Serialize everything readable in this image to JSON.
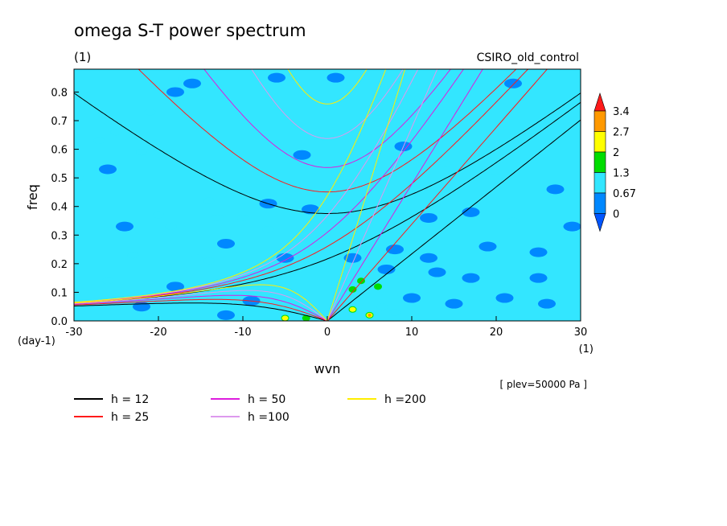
{
  "chart_data": {
    "type": "heatmap",
    "title": "omega S-T power spectrum",
    "subtitle_left": "(1)",
    "subtitle_right": "CSIRO_old_control",
    "xlabel": "wvn",
    "ylabel": "freq",
    "x_unit": "(1)",
    "y_unit": "(day-1)",
    "footnote": "[ plev=50000 Pa ]",
    "xlim": [
      -30,
      30
    ],
    "ylim": [
      0,
      0.88
    ],
    "x_ticks": [
      "-30",
      "-20",
      "-10",
      "0",
      "10",
      "20",
      "30"
    ],
    "y_ticks": [
      "0.0",
      "0.1",
      "0.2",
      "0.3",
      "0.4",
      "0.5",
      "0.6",
      "0.7",
      "0.8"
    ],
    "background_level_color": "#33e6ff",
    "colorbar": {
      "levels": [
        "3.4",
        "2.7",
        "2",
        "1.3",
        "0.67",
        "0"
      ],
      "colors": [
        "#ff1a1a",
        "#ff9900",
        "#ffff00",
        "#00dd00",
        "#33e6ff",
        "#0088ff",
        "#0055ff"
      ]
    },
    "patches": [
      {
        "x": -29.5,
        "y": 0.5,
        "level": 4
      },
      {
        "x": -27,
        "y": 0.63,
        "level": 4
      },
      {
        "x": -25,
        "y": 0.66,
        "level": 4
      },
      {
        "x": -22,
        "y": 0.59,
        "level": 4
      },
      {
        "x": -20,
        "y": 0.37,
        "level": 4
      },
      {
        "x": -18.5,
        "y": 0.33,
        "level": 4
      },
      {
        "x": -14,
        "y": 0.42,
        "level": 4
      },
      {
        "x": -13,
        "y": 0.36,
        "level": 4
      },
      {
        "x": -10,
        "y": 0.36,
        "level": 4
      },
      {
        "x": -7,
        "y": 0.32,
        "level": 4
      },
      {
        "x": -15.5,
        "y": 0.22,
        "level": 4
      },
      {
        "x": -14,
        "y": 0.21,
        "level": 4
      },
      {
        "x": -6,
        "y": 0.16,
        "level": 4
      },
      {
        "x": -3,
        "y": 0.28,
        "level": 4
      },
      {
        "x": -26,
        "y": 0.14,
        "level": 4
      },
      {
        "x": -23,
        "y": 0.23,
        "level": 4
      },
      {
        "x": 14,
        "y": 0.55,
        "level": 4
      },
      {
        "x": 20,
        "y": 0.52,
        "level": 4
      },
      {
        "x": 22,
        "y": 0.35,
        "level": 4
      },
      {
        "x": -21,
        "y": 0.73,
        "level": 4
      },
      {
        "x": -17,
        "y": 0.85,
        "level": 4
      },
      {
        "x": 6,
        "y": 0.73,
        "level": 4
      },
      {
        "x": 1,
        "y": 0.35,
        "level": 4
      },
      {
        "x": 2.5,
        "y": 0.08,
        "level": 4
      },
      {
        "x": 4,
        "y": 0.11,
        "level": 4
      },
      {
        "x": 6,
        "y": 0.12,
        "level": 4
      },
      {
        "x": 1.5,
        "y": 0.04,
        "level": 4
      },
      {
        "x": 3.5,
        "y": 0.05,
        "level": 4
      },
      {
        "x": 6.5,
        "y": 0.05,
        "level": 4
      },
      {
        "x": 8,
        "y": 0.03,
        "level": 4
      },
      {
        "x": -5,
        "y": 0.02,
        "level": 4
      },
      {
        "x": -2.5,
        "y": 0.02,
        "level": 4
      },
      {
        "x": 3,
        "y": 0.11,
        "level": 3
      },
      {
        "x": 4,
        "y": 0.14,
        "level": 3
      },
      {
        "x": 6,
        "y": 0.12,
        "level": 3
      },
      {
        "x": 3,
        "y": 0.04,
        "level": 3
      },
      {
        "x": 5,
        "y": 0.02,
        "level": 3
      },
      {
        "x": -5,
        "y": 0.01,
        "level": 3
      },
      {
        "x": -2.5,
        "y": 0.01,
        "level": 3
      },
      {
        "x": 5,
        "y": 0.02,
        "level": 2
      },
      {
        "x": 3,
        "y": 0.04,
        "level": 2
      },
      {
        "x": 5,
        "y": 0.02,
        "level": 1
      },
      {
        "x": -5,
        "y": 0.01,
        "level": 2
      },
      {
        "x": -18,
        "y": 0.8,
        "level": 5
      },
      {
        "x": -16,
        "y": 0.83,
        "level": 5
      },
      {
        "x": -6,
        "y": 0.85,
        "level": 5
      },
      {
        "x": 1,
        "y": 0.85,
        "level": 5
      },
      {
        "x": 22,
        "y": 0.83,
        "level": 5
      },
      {
        "x": 27,
        "y": 0.46,
        "level": 5
      },
      {
        "x": -24,
        "y": 0.33,
        "level": 5
      },
      {
        "x": -7,
        "y": 0.41,
        "level": 5
      },
      {
        "x": -2,
        "y": 0.39,
        "level": 5
      },
      {
        "x": 12,
        "y": 0.36,
        "level": 5
      },
      {
        "x": 17,
        "y": 0.38,
        "level": 5
      },
      {
        "x": 25,
        "y": 0.24,
        "level": 5
      },
      {
        "x": -12,
        "y": 0.27,
        "level": 5
      },
      {
        "x": 17,
        "y": 0.15,
        "level": 5
      },
      {
        "x": 13,
        "y": 0.17,
        "level": 5
      },
      {
        "x": 10,
        "y": 0.08,
        "level": 5
      },
      {
        "x": 15,
        "y": 0.06,
        "level": 5
      },
      {
        "x": 21,
        "y": 0.08,
        "level": 5
      },
      {
        "x": 26,
        "y": 0.06,
        "level": 5
      },
      {
        "x": 8,
        "y": 0.25,
        "level": 5
      },
      {
        "x": 12,
        "y": 0.22,
        "level": 5
      },
      {
        "x": -22,
        "y": 0.05,
        "level": 5
      },
      {
        "x": -12,
        "y": 0.02,
        "level": 5
      },
      {
        "x": -18,
        "y": 0.12,
        "level": 5
      },
      {
        "x": -9,
        "y": 0.07,
        "level": 5
      },
      {
        "x": 3,
        "y": 0.22,
        "level": 5
      },
      {
        "x": -26,
        "y": 0.53,
        "level": 5
      },
      {
        "x": 9,
        "y": 0.61,
        "level": 5
      },
      {
        "x": -3,
        "y": 0.58,
        "level": 5
      },
      {
        "x": 29,
        "y": 0.33,
        "level": 5
      },
      {
        "x": 25,
        "y": 0.15,
        "level": 5
      },
      {
        "x": 19,
        "y": 0.26,
        "level": 5
      },
      {
        "x": 7,
        "y": 0.18,
        "level": 5
      },
      {
        "x": -5,
        "y": 0.22,
        "level": 5
      }
    ],
    "series": [
      {
        "name": "h = 12",
        "h": 12,
        "color": "#000000"
      },
      {
        "name": "h = 25",
        "h": 25,
        "color": "#ff1a1a"
      },
      {
        "name": "h = 50",
        "h": 50,
        "color": "#dd1ddd"
      },
      {
        "name": "h =100",
        "h": 100,
        "color": "#dd99ee"
      },
      {
        "name": "h =200",
        "h": 200,
        "color": "#ffee00"
      }
    ]
  }
}
